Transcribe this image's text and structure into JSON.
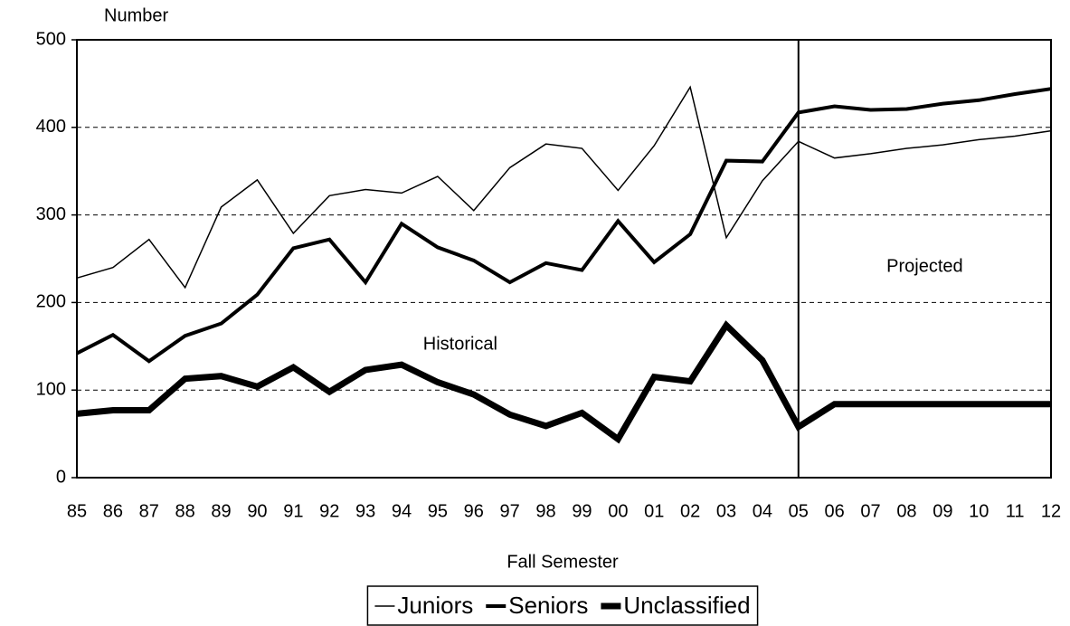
{
  "chart_data": {
    "type": "line",
    "y_label": "Number",
    "x_label": "Fall Semester",
    "categories": [
      "85",
      "86",
      "87",
      "88",
      "89",
      "90",
      "91",
      "92",
      "93",
      "94",
      "95",
      "96",
      "97",
      "98",
      "99",
      "00",
      "01",
      "02",
      "03",
      "04",
      "05",
      "06",
      "07",
      "08",
      "09",
      "10",
      "11",
      "12"
    ],
    "series": [
      {
        "name": "Juniors",
        "color": "#000000",
        "line_width": 1.5,
        "values": [
          228,
          240,
          272,
          217,
          309,
          340,
          279,
          322,
          329,
          325,
          344,
          305,
          354,
          381,
          376,
          328,
          379,
          446,
          274,
          339,
          384,
          365,
          370,
          376,
          380,
          386,
          390,
          396
        ]
      },
      {
        "name": "Seniors",
        "color": "#000000",
        "line_width": 4,
        "values": [
          142,
          163,
          133,
          162,
          176,
          209,
          262,
          272,
          223,
          290,
          263,
          248,
          223,
          245,
          237,
          293,
          246,
          278,
          362,
          361,
          417,
          424,
          420,
          421,
          427,
          431,
          438,
          444
        ]
      },
      {
        "name": "Unclassified",
        "color": "#000000",
        "line_width": 7,
        "values": [
          73,
          77,
          77,
          113,
          116,
          104,
          126,
          98,
          123,
          129,
          109,
          95,
          72,
          59,
          74,
          44,
          115,
          110,
          174,
          134,
          58,
          84,
          84,
          84,
          84,
          84,
          84,
          84
        ]
      }
    ],
    "divider_category": "05",
    "annotations": [
      "Historical",
      "Projected"
    ],
    "ylim": [
      0,
      500
    ],
    "yticks": [
      0,
      100,
      200,
      300,
      400,
      500
    ],
    "grid": true,
    "legend": "bottom"
  }
}
